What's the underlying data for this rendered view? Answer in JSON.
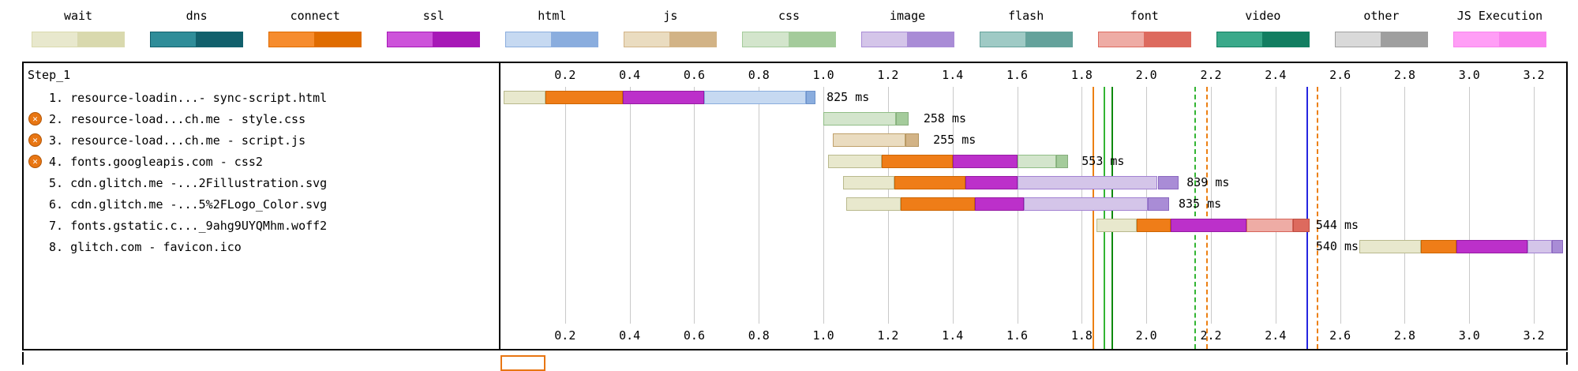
{
  "legend": {
    "items": [
      {
        "label": "wait",
        "light": "#e8e8cd",
        "dark": "#d9d9ae"
      },
      {
        "label": "dns",
        "light": "#2f8d99",
        "dark": "#11606c"
      },
      {
        "label": "connect",
        "light": "#f68c2e",
        "dark": "#e06c00"
      },
      {
        "label": "ssl",
        "light": "#cd53da",
        "dark": "#a718b7"
      },
      {
        "label": "html",
        "light": "#c6d9f1",
        "dark": "#8aadde"
      },
      {
        "label": "js",
        "light": "#eadcc0",
        "dark": "#d2b386"
      },
      {
        "label": "css",
        "light": "#d3e5cc",
        "dark": "#a4cb9b"
      },
      {
        "label": "image",
        "light": "#d4c5e9",
        "dark": "#a98cd6"
      },
      {
        "label": "flash",
        "light": "#9fcac5",
        "dark": "#64a29b"
      },
      {
        "label": "font",
        "light": "#eeaca5",
        "dark": "#dd6a5e"
      },
      {
        "label": "video",
        "light": "#3aa98a",
        "dark": "#127e61"
      },
      {
        "label": "other",
        "light": "#d9d9d9",
        "dark": "#9f9f9f"
      },
      {
        "label": "JS Execution",
        "light": "#ff9ef6",
        "dark": "#f983ee"
      }
    ]
  },
  "chart_data": {
    "type": "bar",
    "subtype": "request-waterfall",
    "step_label": "Step_1",
    "blocked_icon_glyph": "✕",
    "time_axis": {
      "unit": "seconds",
      "ticks": [
        0.2,
        0.4,
        0.6,
        0.8,
        1.0,
        1.2,
        1.4,
        1.6,
        1.8,
        2.0,
        2.2,
        2.4,
        2.6,
        2.8,
        3.0,
        3.2
      ],
      "max": 3.3
    },
    "phases": {
      "wait": {
        "fill": "#e8e8cd",
        "border": "#b9b98d"
      },
      "connect": {
        "fill": "#ef7d18",
        "border": "#cc6502"
      },
      "ssl": {
        "fill": "#bc30ca",
        "border": "#951ba3"
      },
      "html": {
        "fill": "#c6d9f1",
        "border": "#8aadde"
      },
      "html_dl": {
        "fill": "#8aadde",
        "border": "#6d92c9"
      },
      "css": {
        "fill": "#d3e5cc",
        "border": "#90bd86"
      },
      "css_dl": {
        "fill": "#a4cb9b",
        "border": "#86ad7d"
      },
      "js": {
        "fill": "#eadcc0",
        "border": "#c0a06a"
      },
      "js_dl": {
        "fill": "#d2b386",
        "border": "#b3945f"
      },
      "image": {
        "fill": "#d4c5e9",
        "border": "#a282d2"
      },
      "image_dl": {
        "fill": "#a98cd6",
        "border": "#8a68bf"
      },
      "font": {
        "fill": "#eeaca5",
        "border": "#d7655a"
      },
      "font_dl": {
        "fill": "#dd6a5e",
        "border": "#bf4e43"
      }
    },
    "rows": [
      {
        "label": "1. resource-loadin...- sync-script.html",
        "blocked": false,
        "duration": "825 ms",
        "duration_at": 1.0,
        "segments": [
          {
            "phase": "wait",
            "start": 0.01,
            "end": 0.14
          },
          {
            "phase": "connect",
            "start": 0.14,
            "end": 0.38
          },
          {
            "phase": "ssl",
            "start": 0.38,
            "end": 0.63
          },
          {
            "phase": "html",
            "start": 0.63,
            "end": 0.945
          },
          {
            "phase": "html_dl",
            "start": 0.945,
            "end": 0.975
          }
        ]
      },
      {
        "label": "2. resource-load...ch.me - style.css",
        "blocked": true,
        "duration": "258 ms",
        "duration_at": 1.3,
        "segments": [
          {
            "phase": "css",
            "start": 1.0,
            "end": 1.225
          },
          {
            "phase": "css_dl",
            "start": 1.225,
            "end": 1.265
          }
        ]
      },
      {
        "label": "3. resource-load...ch.me - script.js",
        "blocked": true,
        "duration": "255 ms",
        "duration_at": 1.33,
        "segments": [
          {
            "phase": "js",
            "start": 1.03,
            "end": 1.255
          },
          {
            "phase": "js_dl",
            "start": 1.255,
            "end": 1.295
          }
        ]
      },
      {
        "label": "4. fonts.googleapis.com - css2",
        "blocked": true,
        "duration": "553 ms",
        "duration_at": 1.79,
        "segments": [
          {
            "phase": "wait",
            "start": 1.015,
            "end": 1.18
          },
          {
            "phase": "connect",
            "start": 1.18,
            "end": 1.4
          },
          {
            "phase": "ssl",
            "start": 1.4,
            "end": 1.6
          },
          {
            "phase": "css",
            "start": 1.6,
            "end": 1.72
          },
          {
            "phase": "css_dl",
            "start": 1.72,
            "end": 1.757
          }
        ]
      },
      {
        "label": "5. cdn.glitch.me -...2Fillustration.svg",
        "blocked": false,
        "duration": "839 ms",
        "duration_at": 2.115,
        "segments": [
          {
            "phase": "wait",
            "start": 1.06,
            "end": 1.22
          },
          {
            "phase": "connect",
            "start": 1.22,
            "end": 1.44
          },
          {
            "phase": "ssl",
            "start": 1.44,
            "end": 1.6
          },
          {
            "phase": "image",
            "start": 1.6,
            "end": 2.035
          },
          {
            "phase": "image_dl",
            "start": 2.035,
            "end": 2.1
          }
        ]
      },
      {
        "label": "6. cdn.glitch.me -...5%2FLogo_Color.svg",
        "blocked": false,
        "duration": "835 ms",
        "duration_at": 2.09,
        "segments": [
          {
            "phase": "wait",
            "start": 1.07,
            "end": 1.24
          },
          {
            "phase": "connect",
            "start": 1.24,
            "end": 1.47
          },
          {
            "phase": "ssl",
            "start": 1.47,
            "end": 1.62
          },
          {
            "phase": "image",
            "start": 1.62,
            "end": 2.005
          },
          {
            "phase": "image_dl",
            "start": 2.005,
            "end": 2.07
          }
        ]
      },
      {
        "label": "7. fonts.gstatic.c..._9ahg9UYQMhm.woff2",
        "blocked": false,
        "duration": "544 ms",
        "duration_at": 2.515,
        "segments": [
          {
            "phase": "wait",
            "start": 1.845,
            "end": 1.97
          },
          {
            "phase": "connect",
            "start": 1.97,
            "end": 2.075
          },
          {
            "phase": "ssl",
            "start": 2.075,
            "end": 2.31
          },
          {
            "phase": "font",
            "start": 2.31,
            "end": 2.455
          },
          {
            "phase": "font_dl",
            "start": 2.455,
            "end": 2.505
          }
        ]
      },
      {
        "label": "8. glitch.com - favicon.ico",
        "blocked": false,
        "duration": "540 ms",
        "duration_at": 2.515,
        "segments": [
          {
            "phase": "wait",
            "start": 2.66,
            "end": 2.85
          },
          {
            "phase": "connect",
            "start": 2.85,
            "end": 2.96
          },
          {
            "phase": "ssl",
            "start": 2.96,
            "end": 3.18
          },
          {
            "phase": "image",
            "start": 3.18,
            "end": 3.255
          },
          {
            "phase": "image_dl",
            "start": 3.255,
            "end": 3.29
          }
        ]
      }
    ],
    "markers": [
      {
        "t": 1.836,
        "color": "#ec8013",
        "dashed": false
      },
      {
        "t": 1.87,
        "color": "#33b533",
        "dashed": false
      },
      {
        "t": 1.894,
        "color": "#0e8a0e",
        "dashed": false
      },
      {
        "t": 2.152,
        "color": "#33b533",
        "dashed": true
      },
      {
        "t": 2.187,
        "color": "#ec8013",
        "dashed": true
      },
      {
        "t": 2.499,
        "color": "#2525e0",
        "dashed": false
      },
      {
        "t": 2.53,
        "color": "#ec8013",
        "dashed": true
      }
    ]
  }
}
